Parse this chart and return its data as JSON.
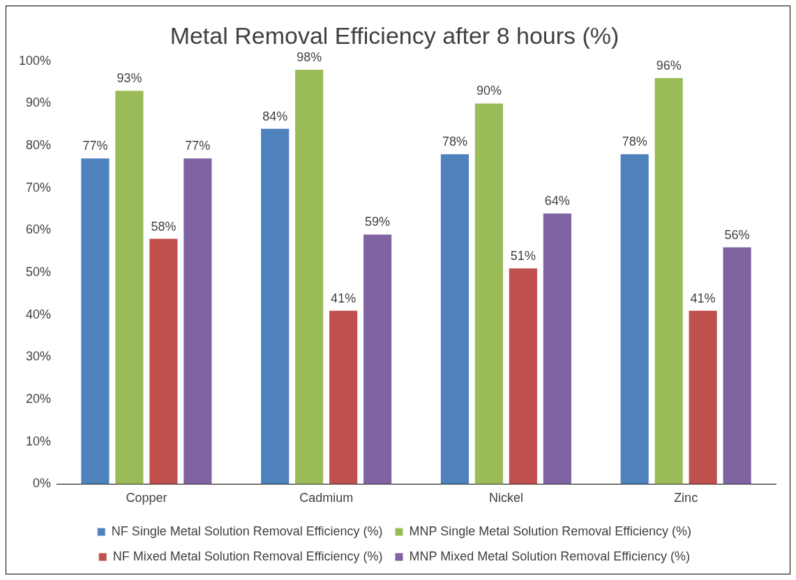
{
  "chart_data": {
    "type": "bar",
    "title": "Metal Removal Efficiency after 8 hours (%)",
    "categories": [
      "Copper",
      "Cadmium",
      "Nickel",
      "Zinc"
    ],
    "series": [
      {
        "name": "NF Single Metal Solution Removal Efficiency (%)",
        "color": "#4f81bd",
        "values": [
          77,
          84,
          78,
          78
        ],
        "value_labels": [
          "77%",
          "84%",
          "78%",
          "78%"
        ]
      },
      {
        "name": "MNP Single Metal Solution Removal Efficiency (%)",
        "color": "#9bbb59",
        "values": [
          93,
          98,
          90,
          96
        ],
        "value_labels": [
          "93%",
          "98%",
          "90%",
          "96%"
        ]
      },
      {
        "name": "NF Mixed Metal Solution Removal Efficiency (%)",
        "color": "#c0504d",
        "values": [
          58,
          41,
          51,
          41
        ],
        "value_labels": [
          "58%",
          "41%",
          "51%",
          "41%"
        ]
      },
      {
        "name": "MNP Mixed Metal Solution Removal Efficiency (%)",
        "color": "#8064a2",
        "values": [
          77,
          59,
          64,
          56
        ],
        "value_labels": [
          "77%",
          "59%",
          "64%",
          "56%"
        ]
      }
    ],
    "ylim": [
      0,
      100
    ],
    "yticks": [
      {
        "value": 0,
        "label": "0%"
      },
      {
        "value": 10,
        "label": "10%"
      },
      {
        "value": 20,
        "label": "20%"
      },
      {
        "value": 30,
        "label": "30%"
      },
      {
        "value": 40,
        "label": "40%"
      },
      {
        "value": 50,
        "label": "50%"
      },
      {
        "value": 60,
        "label": "60%"
      },
      {
        "value": 70,
        "label": "70%"
      },
      {
        "value": 80,
        "label": "80%"
      },
      {
        "value": 90,
        "label": "90%"
      },
      {
        "value": 100,
        "label": "100%"
      }
    ],
    "grid": false,
    "legend": "bottom"
  }
}
